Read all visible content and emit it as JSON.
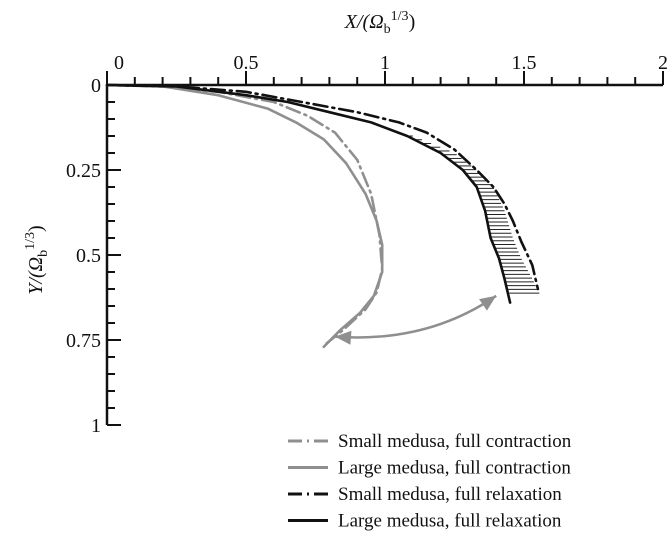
{
  "chart_data": {
    "type": "line",
    "xlabel": "X/(Ω_b^1/3)",
    "ylabel": "Y/(Ω_b^1/3)",
    "xlabel_parts": {
      "main": "X/(Ω",
      "sub": "b",
      "sup": "1/3",
      "close": ")"
    },
    "ylabel_parts": {
      "main": "Y/(Ω",
      "sub": "b",
      "sup": "1/3",
      "close": ")"
    },
    "xlim": [
      0,
      2
    ],
    "ylim": [
      0,
      1
    ],
    "y_inverted": true,
    "x_axis_position": "top",
    "x_ticks": [
      0,
      0.5,
      1,
      1.5,
      2
    ],
    "x_tick_labels": [
      "0",
      "0.5",
      "1",
      "1.5",
      "2"
    ],
    "y_ticks": [
      0,
      0.25,
      0.5,
      0.75,
      1
    ],
    "y_tick_labels": [
      "0",
      "0.25",
      "0.5",
      "0.75",
      "1"
    ],
    "grid": false,
    "legend_position": "bottom-right",
    "series": [
      {
        "name": "Small medusa, full contraction",
        "color": "#8f8f8f",
        "style": "dashdot",
        "x": [
          0.0,
          0.2,
          0.4,
          0.6,
          0.72,
          0.82,
          0.9,
          0.95,
          0.98,
          0.99,
          0.97,
          0.93,
          0.85,
          0.79
        ],
        "y": [
          0.0,
          0.004,
          0.02,
          0.05,
          0.09,
          0.14,
          0.22,
          0.32,
          0.44,
          0.54,
          0.61,
          0.66,
          0.72,
          0.76
        ]
      },
      {
        "name": "Large medusa, full contraction",
        "color": "#8f8f8f",
        "style": "solid",
        "x": [
          0.0,
          0.2,
          0.4,
          0.58,
          0.68,
          0.78,
          0.86,
          0.93,
          0.97,
          0.99,
          0.99,
          0.96,
          0.91,
          0.84,
          0.78
        ],
        "y": [
          0.0,
          0.004,
          0.03,
          0.07,
          0.11,
          0.16,
          0.23,
          0.32,
          0.4,
          0.47,
          0.55,
          0.62,
          0.67,
          0.72,
          0.77
        ]
      },
      {
        "name": "Small medusa, full relaxation",
        "color": "#111111",
        "style": "dashdot",
        "x": [
          0.0,
          0.25,
          0.5,
          0.7,
          0.9,
          1.05,
          1.15,
          1.25,
          1.33,
          1.39,
          1.43,
          1.46,
          1.49,
          1.53,
          1.55
        ],
        "y": [
          0.0,
          0.004,
          0.02,
          0.05,
          0.08,
          0.11,
          0.14,
          0.19,
          0.25,
          0.3,
          0.35,
          0.4,
          0.46,
          0.53,
          0.6
        ]
      },
      {
        "name": "Large medusa, full relaxation",
        "color": "#111111",
        "style": "solid",
        "x": [
          0.0,
          0.25,
          0.5,
          0.65,
          0.8,
          0.95,
          1.08,
          1.2,
          1.28,
          1.33,
          1.36,
          1.38,
          1.41,
          1.43,
          1.45
        ],
        "y": [
          0.0,
          0.004,
          0.03,
          0.05,
          0.08,
          0.11,
          0.15,
          0.2,
          0.25,
          0.3,
          0.37,
          0.45,
          0.51,
          0.57,
          0.64
        ]
      }
    ],
    "band": {
      "name": "hatched region between large-medusa relaxation curves",
      "x_inner": [
        1.08,
        1.2,
        1.28,
        1.33,
        1.36,
        1.38,
        1.41,
        1.43,
        1.45
      ],
      "x_outer": [
        1.1,
        1.25,
        1.33,
        1.39,
        1.43,
        1.46,
        1.49,
        1.53,
        1.56
      ],
      "y": [
        0.15,
        0.2,
        0.25,
        0.3,
        0.37,
        0.45,
        0.51,
        0.57,
        0.62
      ]
    },
    "annotation_arrow": {
      "from": [
        0.82,
        0.74
      ],
      "to": [
        1.4,
        0.62
      ],
      "control": [
        1.15,
        0.76
      ],
      "color": "#8f8f8f",
      "double_headed": true
    }
  }
}
